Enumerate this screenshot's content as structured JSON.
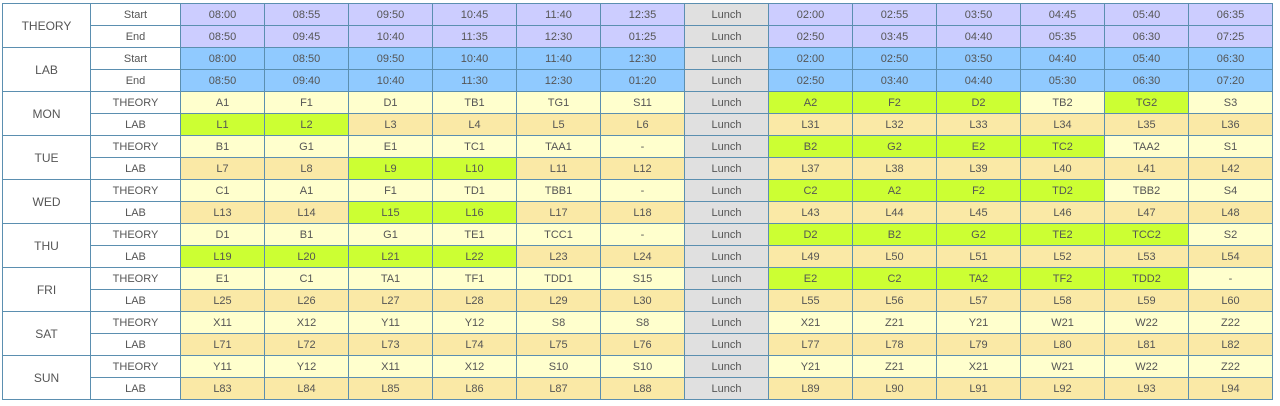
{
  "theory_header": {
    "label": "THEORY",
    "rows": [
      {
        "label": "Start",
        "cells": [
          "08:00",
          "08:55",
          "09:50",
          "10:45",
          "11:40",
          "12:35",
          "Lunch",
          "02:00",
          "02:55",
          "03:50",
          "04:45",
          "05:40",
          "06:35"
        ]
      },
      {
        "label": "End",
        "cells": [
          "08:50",
          "09:45",
          "10:40",
          "11:35",
          "12:30",
          "01:25",
          "Lunch",
          "02:50",
          "03:45",
          "04:40",
          "05:35",
          "06:30",
          "07:25"
        ]
      }
    ]
  },
  "lab_header": {
    "label": "LAB",
    "rows": [
      {
        "label": "Start",
        "cells": [
          "08:00",
          "08:50",
          "09:50",
          "10:40",
          "11:40",
          "12:30",
          "Lunch",
          "02:00",
          "02:50",
          "03:50",
          "04:40",
          "05:40",
          "06:30"
        ]
      },
      {
        "label": "End",
        "cells": [
          "08:50",
          "09:40",
          "10:40",
          "11:30",
          "12:30",
          "01:20",
          "Lunch",
          "02:50",
          "03:40",
          "04:40",
          "05:30",
          "06:30",
          "07:20"
        ]
      }
    ]
  },
  "days": [
    {
      "day": "MON",
      "theory": {
        "label": "THEORY",
        "cells": [
          "A1",
          "F1",
          "D1",
          "TB1",
          "TG1",
          "S11",
          "Lunch",
          "A2",
          "F2",
          "D2",
          "TB2",
          "TG2",
          "S3"
        ],
        "highlight": [
          7,
          8,
          9,
          11
        ]
      },
      "lab": {
        "label": "LAB",
        "cells": [
          "L1",
          "L2",
          "L3",
          "L4",
          "L5",
          "L6",
          "Lunch",
          "L31",
          "L32",
          "L33",
          "L34",
          "L35",
          "L36"
        ],
        "highlight": [
          0,
          1
        ]
      }
    },
    {
      "day": "TUE",
      "theory": {
        "label": "THEORY",
        "cells": [
          "B1",
          "G1",
          "E1",
          "TC1",
          "TAA1",
          "-",
          "Lunch",
          "B2",
          "G2",
          "E2",
          "TC2",
          "TAA2",
          "S1"
        ],
        "highlight": [
          7,
          8,
          9,
          10
        ]
      },
      "lab": {
        "label": "LAB",
        "cells": [
          "L7",
          "L8",
          "L9",
          "L10",
          "L11",
          "L12",
          "Lunch",
          "L37",
          "L38",
          "L39",
          "L40",
          "L41",
          "L42"
        ],
        "highlight": [
          2,
          3
        ]
      }
    },
    {
      "day": "WED",
      "theory": {
        "label": "THEORY",
        "cells": [
          "C1",
          "A1",
          "F1",
          "TD1",
          "TBB1",
          "-",
          "Lunch",
          "C2",
          "A2",
          "F2",
          "TD2",
          "TBB2",
          "S4"
        ],
        "highlight": [
          7,
          8,
          9,
          10
        ]
      },
      "lab": {
        "label": "LAB",
        "cells": [
          "L13",
          "L14",
          "L15",
          "L16",
          "L17",
          "L18",
          "Lunch",
          "L43",
          "L44",
          "L45",
          "L46",
          "L47",
          "L48"
        ],
        "highlight": [
          2,
          3
        ]
      }
    },
    {
      "day": "THU",
      "theory": {
        "label": "THEORY",
        "cells": [
          "D1",
          "B1",
          "G1",
          "TE1",
          "TCC1",
          "-",
          "Lunch",
          "D2",
          "B2",
          "G2",
          "TE2",
          "TCC2",
          "S2"
        ],
        "highlight": [
          7,
          8,
          9,
          10,
          11
        ]
      },
      "lab": {
        "label": "LAB",
        "cells": [
          "L19",
          "L20",
          "L21",
          "L22",
          "L23",
          "L24",
          "Lunch",
          "L49",
          "L50",
          "L51",
          "L52",
          "L53",
          "L54"
        ],
        "highlight": [
          0,
          1,
          2,
          3
        ]
      }
    },
    {
      "day": "FRI",
      "theory": {
        "label": "THEORY",
        "cells": [
          "E1",
          "C1",
          "TA1",
          "TF1",
          "TDD1",
          "S15",
          "Lunch",
          "E2",
          "C2",
          "TA2",
          "TF2",
          "TDD2",
          "-"
        ],
        "highlight": [
          7,
          8,
          9,
          10,
          11
        ]
      },
      "lab": {
        "label": "LAB",
        "cells": [
          "L25",
          "L26",
          "L27",
          "L28",
          "L29",
          "L30",
          "Lunch",
          "L55",
          "L56",
          "L57",
          "L58",
          "L59",
          "L60"
        ],
        "highlight": []
      }
    },
    {
      "day": "SAT",
      "theory": {
        "label": "THEORY",
        "cells": [
          "X11",
          "X12",
          "Y11",
          "Y12",
          "S8",
          "S8",
          "Lunch",
          "X21",
          "Z21",
          "Y21",
          "W21",
          "W22",
          "Z22"
        ],
        "highlight": []
      },
      "lab": {
        "label": "LAB",
        "cells": [
          "L71",
          "L72",
          "L73",
          "L74",
          "L75",
          "L76",
          "Lunch",
          "L77",
          "L78",
          "L79",
          "L80",
          "L81",
          "L82"
        ],
        "highlight": []
      }
    },
    {
      "day": "SUN",
      "theory": {
        "label": "THEORY",
        "cells": [
          "Y11",
          "Y12",
          "X11",
          "X12",
          "S10",
          "S10",
          "Lunch",
          "Y21",
          "Z21",
          "X21",
          "W21",
          "W22",
          "Z22"
        ],
        "highlight": []
      },
      "lab": {
        "label": "LAB",
        "cells": [
          "L83",
          "L84",
          "L85",
          "L86",
          "L87",
          "L88",
          "Lunch",
          "L89",
          "L90",
          "L91",
          "L92",
          "L93",
          "L94"
        ],
        "highlight": []
      }
    }
  ],
  "colors": {
    "border": "#5b8fb0",
    "theory_time_bg": "#cccdff",
    "lab_time_bg": "#90caff",
    "theory_slot_bg": "#ffffcd",
    "lab_slot_bg": "#fae9a6",
    "lunch_bg": "#e0e0e0",
    "selected_bg": "#ccff33"
  }
}
